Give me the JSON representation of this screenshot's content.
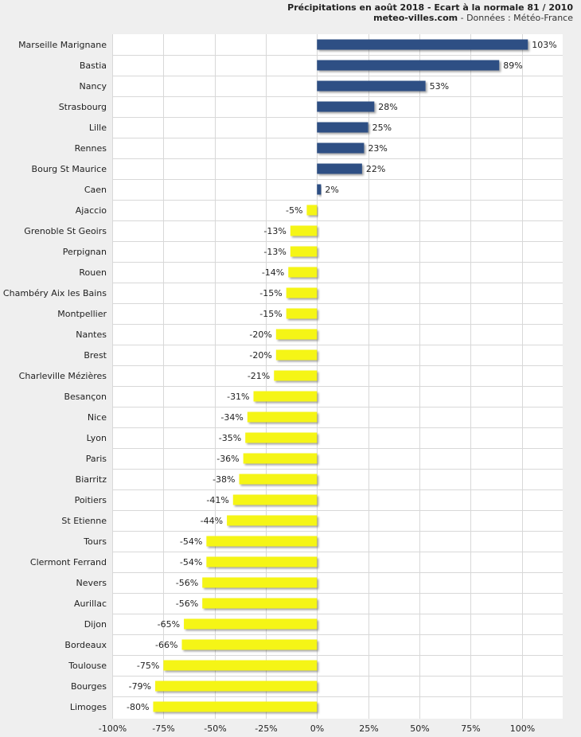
{
  "title": {
    "line1": "Précipitations en août 2018 - Ecart à la normale 81 / 2010",
    "site": "meteo-villes.com",
    "source": " - Données : Météo-France"
  },
  "colors": {
    "positive": "#2e5084",
    "negative": "#f5f518",
    "grid": "#d8d8d8",
    "plot_bg": "#ffffff",
    "page_bg": "#efefef"
  },
  "chart_data": {
    "type": "bar",
    "orientation": "horizontal",
    "title": "Précipitations en août 2018 - Ecart à la normale 81 / 2010",
    "xlabel": "",
    "ylabel": "",
    "xlim": [
      -100,
      120
    ],
    "x_ticks": [
      -100,
      -75,
      -50,
      -25,
      0,
      25,
      50,
      75,
      100
    ],
    "x_tick_labels": [
      "-100%",
      "-75%",
      "-50%",
      "-25%",
      "0%",
      "25%",
      "50%",
      "75%",
      "100%"
    ],
    "grid": true,
    "legend": "none",
    "categories": [
      "Marseille Marignane",
      "Bastia",
      "Nancy",
      "Strasbourg",
      "Lille",
      "Rennes",
      "Bourg St Maurice",
      "Caen",
      "Ajaccio",
      "Grenoble St Geoirs",
      "Perpignan",
      "Rouen",
      "Chambéry Aix les Bains",
      "Montpellier",
      "Nantes",
      "Brest",
      "Charleville Mézières",
      "Besançon",
      "Nice",
      "Lyon",
      "Paris",
      "Biarritz",
      "Poitiers",
      "St Etienne",
      "Tours",
      "Clermont Ferrand",
      "Nevers",
      "Aurillac",
      "Dijon",
      "Bordeaux",
      "Toulouse",
      "Bourges",
      "Limoges"
    ],
    "values": [
      103,
      89,
      53,
      28,
      25,
      23,
      22,
      2,
      -5,
      -13,
      -13,
      -14,
      -15,
      -15,
      -20,
      -20,
      -21,
      -31,
      -34,
      -35,
      -36,
      -38,
      -41,
      -44,
      -54,
      -54,
      -56,
      -56,
      -65,
      -66,
      -75,
      -79,
      -80
    ],
    "value_labels": [
      "103%",
      "89%",
      "53%",
      "28%",
      "25%",
      "23%",
      "22%",
      "2%",
      "-5%",
      "-13%",
      "-13%",
      "-14%",
      "-15%",
      "-15%",
      "-20%",
      "-20%",
      "-21%",
      "-31%",
      "-34%",
      "-35%",
      "-36%",
      "-38%",
      "-41%",
      "-44%",
      "-54%",
      "-54%",
      "-56%",
      "-56%",
      "-65%",
      "-66%",
      "-75%",
      "-79%",
      "-80%"
    ]
  }
}
